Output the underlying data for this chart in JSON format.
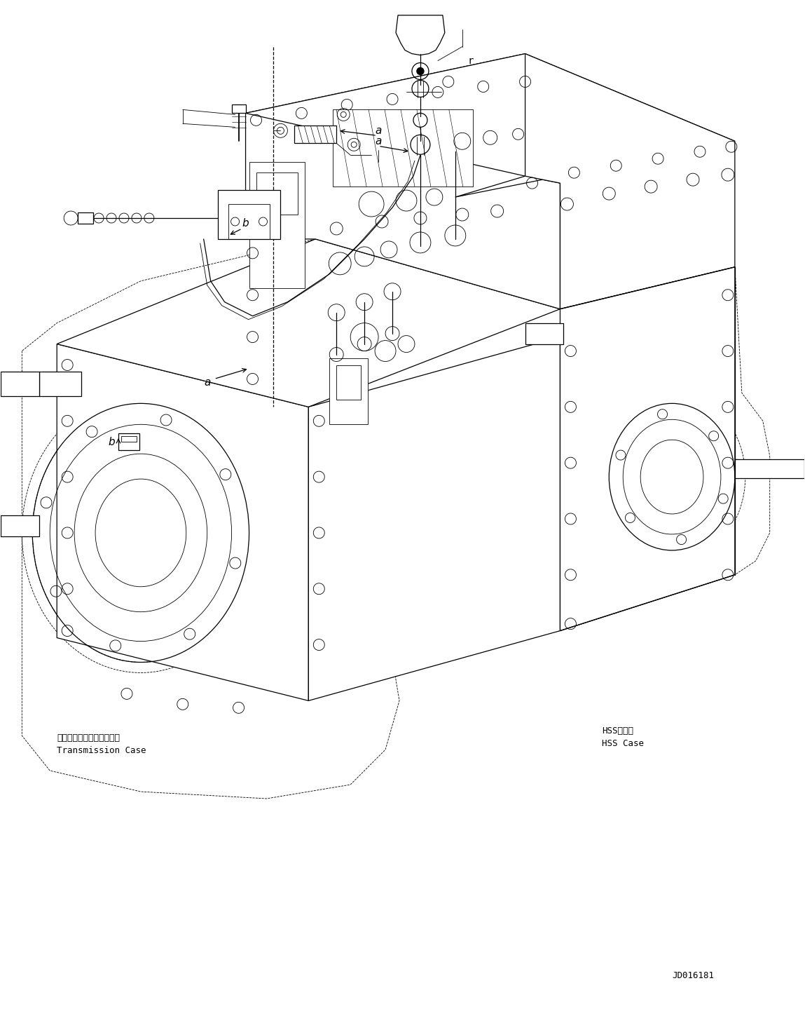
{
  "figure_width": 11.49,
  "figure_height": 14.59,
  "dpi": 100,
  "bg_color": "#ffffff",
  "line_color": "#000000",
  "text_color": "#000000",
  "label_code": "JD016181",
  "transmission_case_jp": "トランスミッションケース",
  "transmission_case_en": "Transmission Case",
  "hss_case_jp": "HSSケース",
  "hss_case_en": "HSS Case",
  "font_size_label": 9,
  "font_size_code": 9,
  "font_family": "monospace",
  "lw_main": 0.9,
  "lw_thin": 0.6,
  "lw_thick": 1.3,
  "lw_dashed": 0.6
}
